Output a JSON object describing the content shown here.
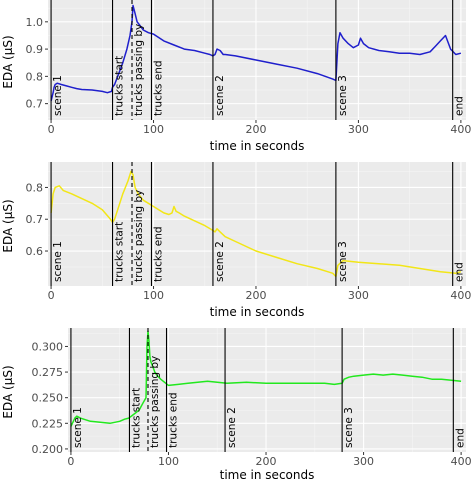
{
  "chart_data": [
    {
      "type": "line",
      "xlabel": "time in seconds",
      "ylabel": "EDA (µS)",
      "xlim": [
        -3,
        405
      ],
      "ylim": [
        0.64,
        1.08
      ],
      "x_ticks": [
        0,
        100,
        200,
        300,
        400
      ],
      "y_ticks": [
        0.7,
        0.8,
        0.9,
        1.0
      ],
      "y_tick_labels": [
        "0.7",
        "0.8",
        "0.9",
        "1.0"
      ],
      "grid": true,
      "color": "#1f1fcc",
      "series": [
        {
          "x": [
            0,
            2,
            3,
            4,
            6,
            10,
            15,
            20,
            25,
            30,
            40,
            50,
            55,
            59,
            60,
            62,
            65,
            70,
            74,
            77,
            79,
            80,
            82,
            84,
            86,
            90,
            95,
            100,
            110,
            120,
            130,
            140,
            150,
            155,
            158,
            160,
            162,
            165,
            168,
            170,
            180,
            200,
            220,
            240,
            260,
            275,
            278,
            280,
            282,
            285,
            290,
            295,
            300,
            302,
            305,
            310,
            320,
            330,
            340,
            350,
            360,
            370,
            375,
            380,
            385,
            390,
            395,
            400
          ],
          "y": [
            0.71,
            0.74,
            0.76,
            0.77,
            0.775,
            0.77,
            0.765,
            0.76,
            0.755,
            0.752,
            0.75,
            0.745,
            0.74,
            0.745,
            0.76,
            0.77,
            0.8,
            0.85,
            0.9,
            0.95,
            1.0,
            1.06,
            1.03,
            1.0,
            0.99,
            0.97,
            0.96,
            0.955,
            0.93,
            0.915,
            0.9,
            0.895,
            0.885,
            0.88,
            0.875,
            0.88,
            0.9,
            0.895,
            0.88,
            0.88,
            0.875,
            0.86,
            0.845,
            0.83,
            0.81,
            0.79,
            0.785,
            0.92,
            0.96,
            0.94,
            0.92,
            0.905,
            0.915,
            0.94,
            0.92,
            0.905,
            0.895,
            0.89,
            0.885,
            0.885,
            0.88,
            0.89,
            0.91,
            0.93,
            0.95,
            0.9,
            0.88,
            0.885
          ]
        }
      ],
      "vlines": [
        {
          "x": 0,
          "label": "scene 1",
          "dashed": false
        },
        {
          "x": 60,
          "label": "trucks start",
          "dashed": false
        },
        {
          "x": 79,
          "label": "trucks passing by",
          "dashed": true
        },
        {
          "x": 98,
          "label": "trucks end",
          "dashed": false
        },
        {
          "x": 158,
          "label": "scene 2",
          "dashed": false
        },
        {
          "x": 278,
          "label": "scene 3",
          "dashed": false
        },
        {
          "x": 392,
          "label": "end",
          "dashed": false
        }
      ]
    },
    {
      "type": "line",
      "xlabel": "time in seconds",
      "ylabel": "EDA (µS)",
      "xlim": [
        -3,
        405
      ],
      "ylim": [
        0.49,
        0.88
      ],
      "x_ticks": [
        0,
        100,
        200,
        300,
        400
      ],
      "y_ticks": [
        0.6,
        0.7,
        0.8
      ],
      "y_tick_labels": [
        "0.6",
        "0.7",
        "0.8"
      ],
      "grid": true,
      "color": "#f2e617",
      "series": [
        {
          "x": [
            0,
            2,
            4,
            8,
            12,
            20,
            30,
            40,
            50,
            58,
            60,
            62,
            65,
            70,
            75,
            78,
            80,
            82,
            85,
            90,
            95,
            100,
            110,
            115,
            118,
            120,
            122,
            125,
            130,
            140,
            150,
            158,
            160,
            162,
            165,
            170,
            180,
            200,
            220,
            240,
            260,
            270,
            275,
            278,
            280,
            285,
            300,
            320,
            340,
            360,
            380,
            395,
            400
          ],
          "y": [
            0.72,
            0.78,
            0.8,
            0.805,
            0.79,
            0.78,
            0.765,
            0.75,
            0.73,
            0.7,
            0.69,
            0.7,
            0.73,
            0.78,
            0.82,
            0.85,
            0.84,
            0.8,
            0.78,
            0.76,
            0.75,
            0.74,
            0.72,
            0.715,
            0.72,
            0.74,
            0.725,
            0.72,
            0.71,
            0.695,
            0.68,
            0.665,
            0.66,
            0.67,
            0.66,
            0.645,
            0.63,
            0.6,
            0.58,
            0.56,
            0.545,
            0.535,
            0.53,
            0.52,
            0.555,
            0.57,
            0.565,
            0.56,
            0.555,
            0.545,
            0.535,
            0.53,
            0.535
          ]
        }
      ],
      "vlines": [
        {
          "x": 0,
          "label": "scene 1",
          "dashed": false
        },
        {
          "x": 60,
          "label": "trucks start",
          "dashed": false
        },
        {
          "x": 79,
          "label": "trucks passing by",
          "dashed": true
        },
        {
          "x": 98,
          "label": "trucks end",
          "dashed": false
        },
        {
          "x": 158,
          "label": "scene 2",
          "dashed": false
        },
        {
          "x": 278,
          "label": "scene 3",
          "dashed": false
        },
        {
          "x": 392,
          "label": "end",
          "dashed": false
        }
      ]
    },
    {
      "type": "line",
      "xlabel": "time in seconds",
      "ylabel": "EDA (µS)",
      "xlim": [
        -3,
        405
      ],
      "ylim": [
        0.197,
        0.318
      ],
      "x_ticks": [
        0,
        100,
        200,
        300,
        400
      ],
      "y_ticks": [
        0.2,
        0.225,
        0.25,
        0.275,
        0.3
      ],
      "y_tick_labels": [
        "0.200",
        "0.225",
        "0.250",
        "0.275",
        "0.300"
      ],
      "grid": true,
      "color": "#22e81e",
      "series": [
        {
          "x": [
            0,
            2,
            4,
            6,
            10,
            20,
            30,
            40,
            50,
            55,
            59,
            62,
            66,
            70,
            74,
            77,
            78,
            79,
            80,
            81,
            82,
            84,
            86,
            88,
            92,
            96,
            100,
            110,
            120,
            130,
            140,
            150,
            160,
            180,
            200,
            220,
            240,
            260,
            270,
            278,
            280,
            285,
            290,
            300,
            310,
            320,
            330,
            340,
            350,
            360,
            370,
            380,
            390,
            400
          ],
          "y": [
            0.222,
            0.226,
            0.23,
            0.232,
            0.23,
            0.227,
            0.226,
            0.225,
            0.227,
            0.229,
            0.23,
            0.232,
            0.235,
            0.238,
            0.245,
            0.25,
            0.3,
            0.315,
            0.305,
            0.29,
            0.285,
            0.28,
            0.275,
            0.272,
            0.268,
            0.265,
            0.262,
            0.263,
            0.264,
            0.265,
            0.266,
            0.265,
            0.264,
            0.265,
            0.264,
            0.264,
            0.264,
            0.264,
            0.263,
            0.264,
            0.268,
            0.27,
            0.271,
            0.272,
            0.273,
            0.272,
            0.273,
            0.272,
            0.271,
            0.27,
            0.268,
            0.268,
            0.267,
            0.266
          ]
        }
      ],
      "vlines": [
        {
          "x": 0,
          "label": "scene 1",
          "dashed": false
        },
        {
          "x": 60,
          "label": "trucks start",
          "dashed": false
        },
        {
          "x": 79,
          "label": "trucks passing by",
          "dashed": true
        },
        {
          "x": 98,
          "label": "trucks end",
          "dashed": false
        },
        {
          "x": 158,
          "label": "scene 2",
          "dashed": false
        },
        {
          "x": 278,
          "label": "scene 3",
          "dashed": false
        },
        {
          "x": 392,
          "label": "end",
          "dashed": false
        }
      ]
    }
  ]
}
